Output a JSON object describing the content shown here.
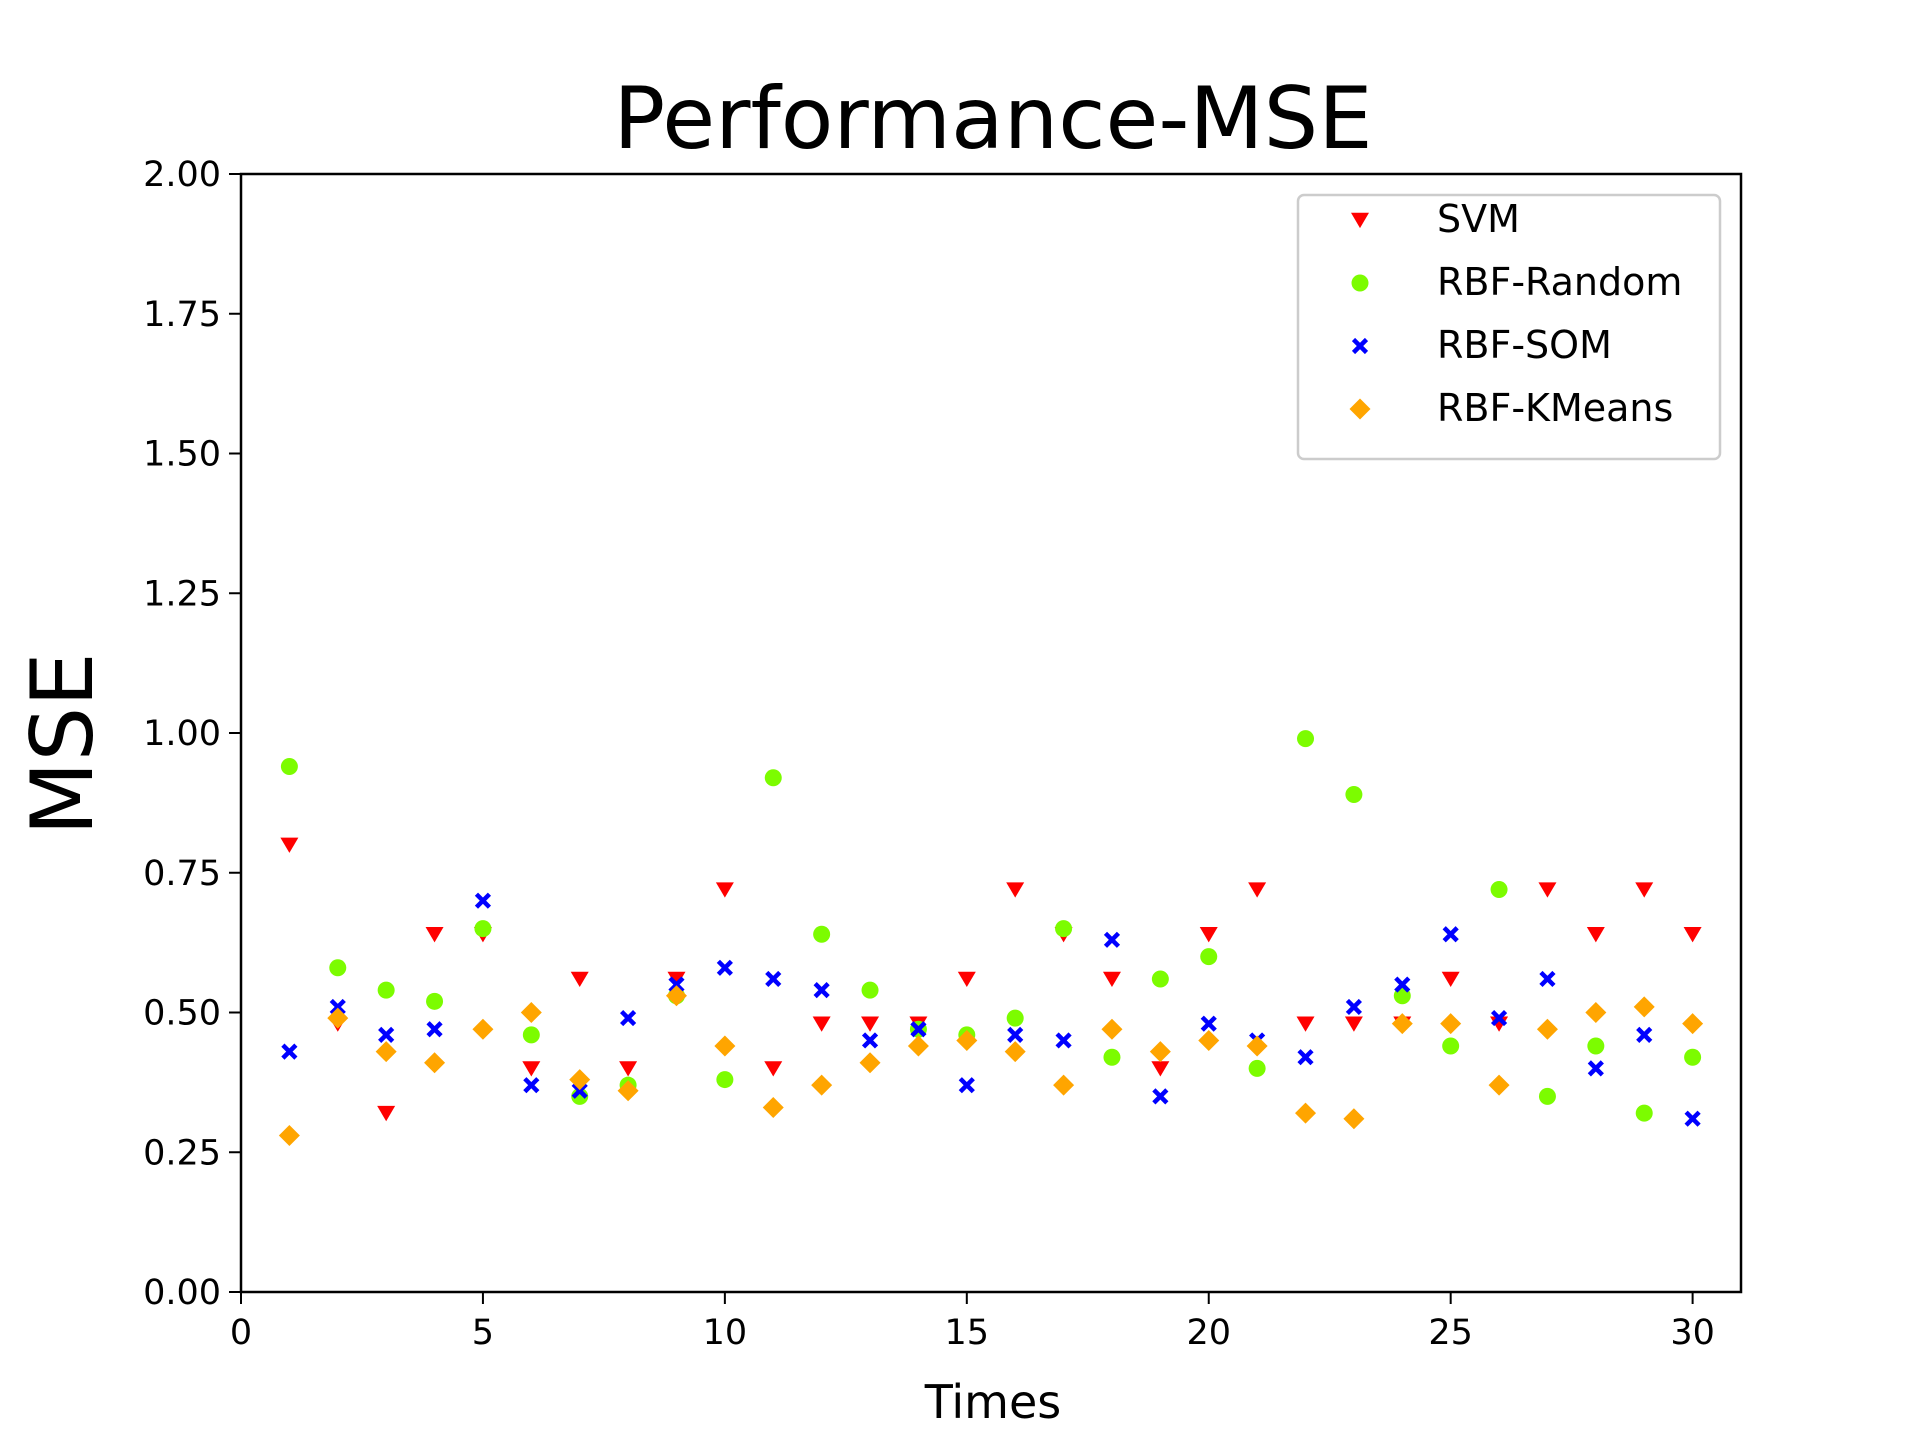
{
  "chart_data": {
    "type": "scatter",
    "title": "Performance-MSE",
    "xlabel": "Times",
    "ylabel": "MSE",
    "xlim": [
      0,
      31
    ],
    "ylim": [
      0.0,
      2.0
    ],
    "xticks": [
      0,
      5,
      10,
      15,
      20,
      25,
      30
    ],
    "xtick_labels": [
      "0",
      "5",
      "10",
      "15",
      "20",
      "25",
      "30"
    ],
    "yticks": [
      0.0,
      0.25,
      0.5,
      0.75,
      1.0,
      1.25,
      1.5,
      1.75,
      2.0
    ],
    "ytick_labels": [
      "0.00",
      "0.25",
      "0.50",
      "0.75",
      "1.00",
      "1.25",
      "1.50",
      "1.75",
      "2.00"
    ],
    "grid": false,
    "legend_position": "top-right",
    "x": [
      1,
      2,
      3,
      4,
      5,
      6,
      7,
      8,
      9,
      10,
      11,
      12,
      13,
      14,
      15,
      16,
      17,
      18,
      19,
      20,
      21,
      22,
      23,
      24,
      25,
      26,
      27,
      28,
      29,
      30
    ],
    "series": [
      {
        "name": "SVM",
        "marker": "triangle-down",
        "color": "#ff0000",
        "values": [
          0.8,
          0.48,
          0.32,
          0.64,
          0.64,
          0.4,
          0.56,
          0.4,
          0.56,
          0.72,
          0.4,
          0.48,
          0.48,
          0.48,
          0.56,
          0.72,
          0.64,
          0.56,
          0.4,
          0.64,
          0.72,
          0.48,
          0.48,
          0.48,
          0.56,
          0.48,
          0.72,
          0.64,
          0.72,
          0.64
        ]
      },
      {
        "name": "RBF-Random",
        "marker": "circle",
        "color": "#7cfc00",
        "values": [
          0.94,
          0.58,
          0.54,
          0.52,
          0.65,
          0.46,
          0.35,
          0.37,
          0.53,
          0.38,
          0.92,
          0.64,
          0.54,
          0.47,
          0.46,
          0.49,
          0.65,
          0.42,
          0.56,
          0.6,
          0.4,
          0.99,
          0.89,
          0.53,
          0.44,
          0.72,
          0.35,
          0.44,
          0.32,
          0.42
        ]
      },
      {
        "name": "RBF-SOM",
        "marker": "x",
        "color": "#0000ff",
        "values": [
          0.43,
          0.51,
          0.46,
          0.47,
          0.7,
          0.37,
          0.36,
          0.49,
          0.55,
          0.58,
          0.56,
          0.54,
          0.45,
          0.47,
          0.37,
          0.46,
          0.45,
          0.63,
          0.35,
          0.48,
          0.45,
          0.42,
          0.51,
          0.55,
          0.64,
          0.49,
          0.56,
          0.4,
          0.46,
          0.31
        ]
      },
      {
        "name": "RBF-KMeans",
        "marker": "diamond",
        "color": "#ffa500",
        "values": [
          0.28,
          0.49,
          0.43,
          0.41,
          0.47,
          0.5,
          0.38,
          0.36,
          0.53,
          0.44,
          0.33,
          0.37,
          0.41,
          0.44,
          0.45,
          0.43,
          0.37,
          0.47,
          0.43,
          0.45,
          0.44,
          0.32,
          0.31,
          0.48,
          0.48,
          0.37,
          0.47,
          0.5,
          0.51,
          0.48
        ]
      }
    ]
  }
}
